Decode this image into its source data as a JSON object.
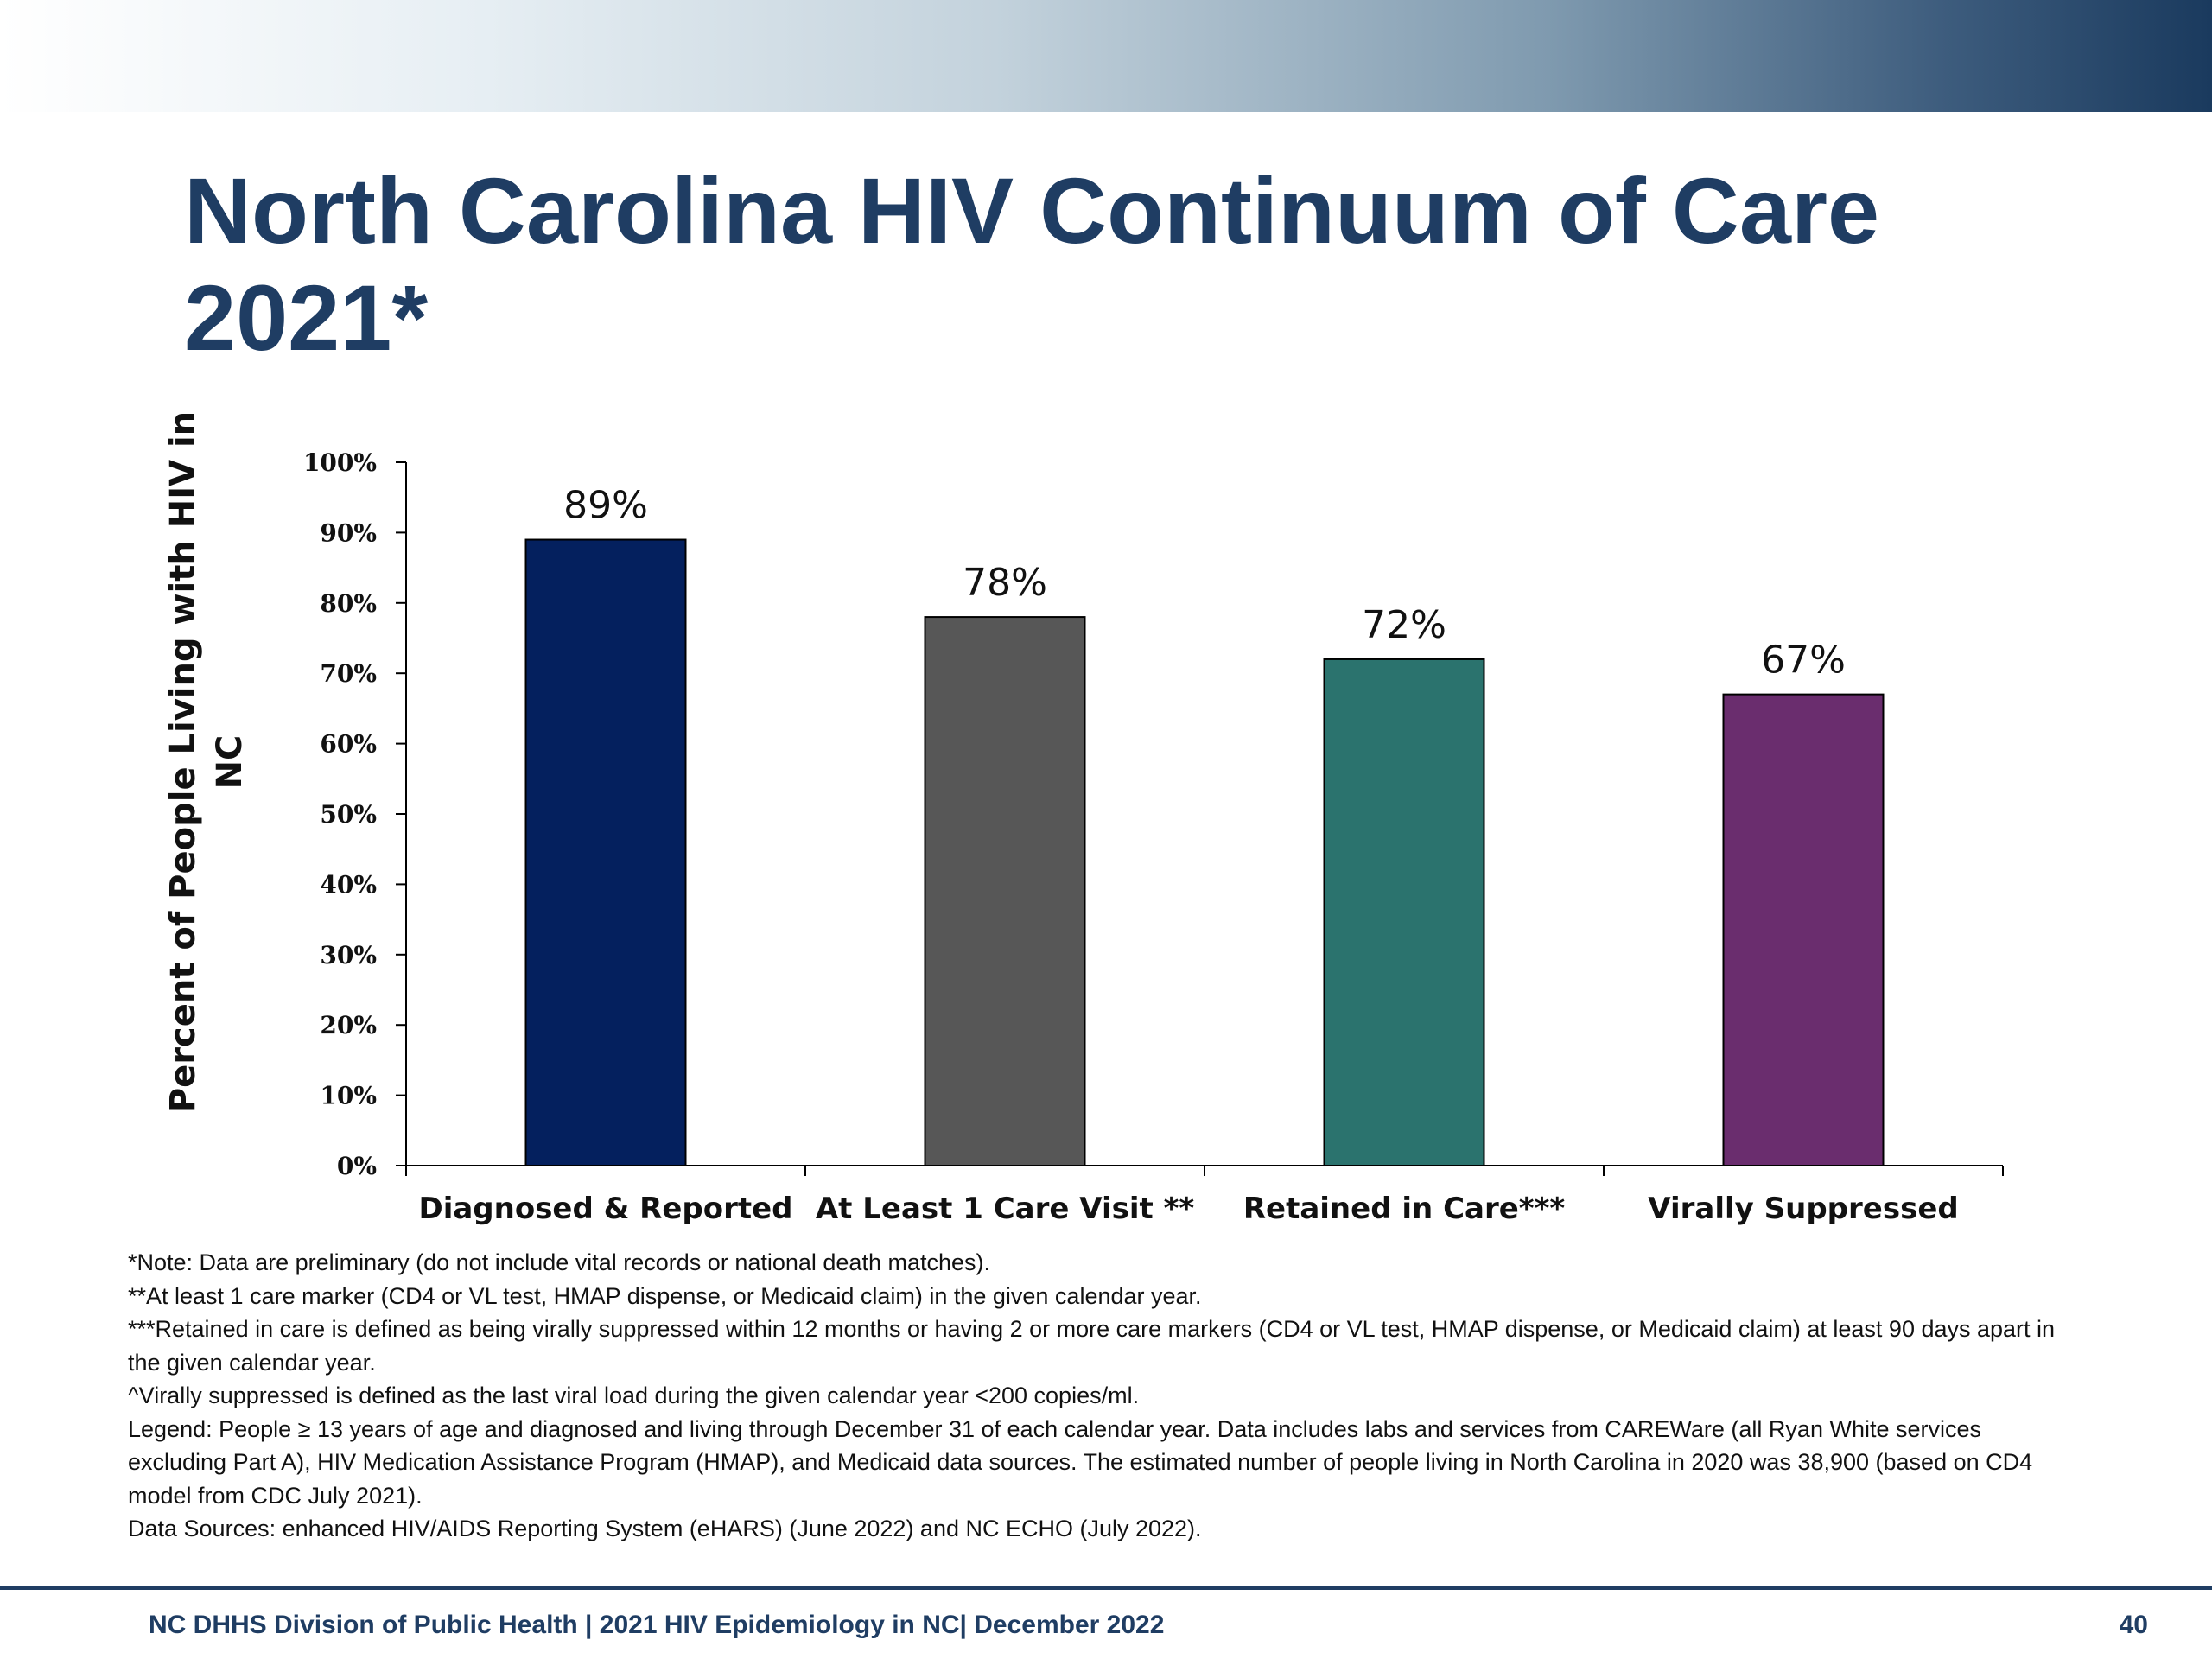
{
  "slide": {
    "title_line1": "North Carolina HIV Continuum of Care",
    "title_line2": "2021*",
    "footer": "NC DHHS Division of Public Health | 2021 HIV Epidemiology in NC| December 2022",
    "page_number": "40"
  },
  "chart_data": {
    "type": "bar",
    "title": "",
    "ylabel": "Percent of People Living with HIV in NC",
    "xlabel": "",
    "categories": [
      "Diagnosed & Reported",
      "At Least 1 Care Visit **",
      "Retained in Care***",
      "Virally Suppressed"
    ],
    "values": [
      89,
      78,
      72,
      67
    ],
    "data_labels": [
      "89%",
      "78%",
      "72%",
      "67%"
    ],
    "bar_colors": [
      "#04205e",
      "#575757",
      "#2b736e",
      "#6a2d6e"
    ],
    "ylim": [
      0,
      100
    ],
    "yticks": [
      0,
      10,
      20,
      30,
      40,
      50,
      60,
      70,
      80,
      90,
      100
    ],
    "ytick_labels": [
      "0%",
      "10%",
      "20%",
      "30%",
      "40%",
      "50%",
      "60%",
      "70%",
      "80%",
      "90%",
      "100%"
    ],
    "grid": false,
    "legend": "none"
  },
  "notes": [
    "*Note: Data are preliminary (do not include vital records or national death matches).",
    "**At least 1 care marker (CD4 or VL test, HMAP dispense, or Medicaid claim) in the given calendar year.",
    "***Retained in care is defined as being virally suppressed within 12 months or having 2 or more care markers (CD4 or VL test, HMAP dispense, or Medicaid claim) at least 90 days apart in the given calendar year.",
    "^Virally suppressed is defined as the last viral load during the given calendar year <200 copies/ml.",
    "Legend: People ≥ 13 years of age and diagnosed and living through December 31 of each calendar year. Data includes labs and services from CAREWare (all Ryan White services excluding Part A), HIV Medication Assistance Program (HMAP), and Medicaid data sources. The estimated number of people living in North Carolina in 2020 was 38,900 (based on CD4 model from CDC July 2021).",
    "Data Sources: enhanced HIV/AIDS Reporting System (eHARS) (June 2022) and NC ECHO (July 2022)."
  ]
}
